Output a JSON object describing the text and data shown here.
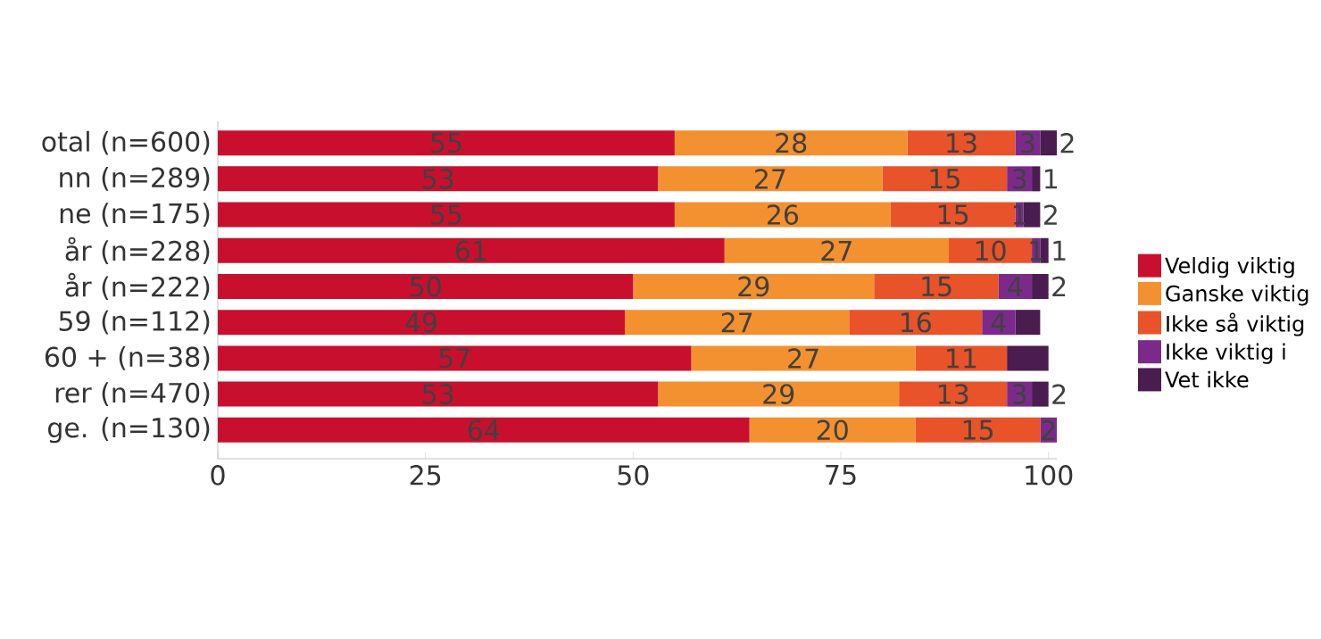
{
  "chart_data": {
    "type": "bar",
    "orientation": "horizontal",
    "stacked": true,
    "legend": "right",
    "categories": [
      "otal (n=600)",
      "nn (n=289)",
      "ne (n=175)",
      "år (n=228)",
      "år (n=222)",
      "59 (n=112)",
      "60 + (n=38)",
      "rer (n=470)",
      "ge. (n=130)"
    ],
    "xlim": [
      0,
      101
    ],
    "xticks": [
      0,
      25,
      50,
      75,
      100
    ],
    "series": [
      {
        "name": "Veldig viktig",
        "color": "#c8102e",
        "values": [
          55,
          53,
          55,
          61,
          50,
          49,
          57,
          53,
          64
        ],
        "value_labels": [
          "55",
          "53",
          "55",
          "61",
          "50",
          "49",
          "57",
          "53",
          "64"
        ]
      },
      {
        "name": "Ganske viktig",
        "color": "#f39130",
        "values": [
          28,
          27,
          26,
          27,
          29,
          27,
          27,
          29,
          20
        ],
        "value_labels": [
          "28",
          "27",
          "26",
          "27",
          "29",
          "27",
          "27",
          "29",
          "20"
        ]
      },
      {
        "name": "Ikke så viktig",
        "color": "#e8532a",
        "values": [
          13,
          15,
          15,
          10,
          15,
          16,
          11,
          13,
          15
        ],
        "value_labels": [
          "13",
          "15",
          "15",
          "10",
          "15",
          "16",
          "11",
          "13",
          "15"
        ]
      },
      {
        "name": "Ikke viktig i",
        "color": "#7b2a8c",
        "values": [
          3,
          3,
          1,
          1,
          4,
          4,
          0,
          3,
          2
        ],
        "value_labels": [
          "3",
          "3",
          "1",
          "1",
          "4",
          "4",
          null,
          "3",
          "2"
        ]
      },
      {
        "name": "Vet ikke",
        "color": "#4a1c4f",
        "values": [
          2,
          1,
          2,
          1,
          2,
          3,
          5,
          2,
          0
        ],
        "value_labels": [
          "2",
          "1",
          "2",
          "1",
          "2",
          null,
          null,
          "2",
          null
        ]
      }
    ]
  }
}
